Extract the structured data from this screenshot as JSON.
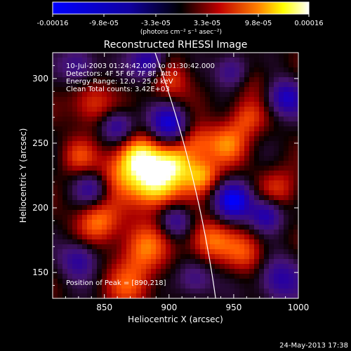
{
  "colorbar": {
    "ticks": [
      "-0.00016",
      "-9.8e-05",
      "-3.3e-05",
      "3.3e-05",
      "9.8e-05",
      "0.00016"
    ],
    "unit": "(photons cm⁻² s⁻¹ asec⁻²)"
  },
  "chart_data": {
    "type": "heatmap",
    "title": "Reconstructed RHESSI Image",
    "xlabel": "Heliocentric X (arcsec)",
    "ylabel": "Heliocentric Y (arcsec)",
    "xlim": [
      810,
      1000
    ],
    "ylim": [
      130,
      320
    ],
    "x_ticks": [
      "850",
      "900",
      "950",
      "1000"
    ],
    "y_ticks": [
      "150",
      "200",
      "250",
      "300"
    ],
    "color_range": [
      -0.00016,
      0.00016
    ],
    "colors": [
      "#0000ff",
      "#000000",
      "#ff0000",
      "#ffff00",
      "#ffffff"
    ],
    "annotations": [
      "10-Jul-2003 01:24:42.000 to 01:30:42.000",
      "Detectors: 4F 5F 6F 7F 8F, Att 0",
      "Energy Range: 12.0 - 25.0 keV",
      "Clean     Total counts: 3.42E+03"
    ],
    "peak_label": "Position of Peak = [890,218]",
    "peak": [
      890,
      218
    ],
    "limb_color": "#ffffff"
  },
  "footer": {
    "date": "24-May-2013 17:38"
  }
}
